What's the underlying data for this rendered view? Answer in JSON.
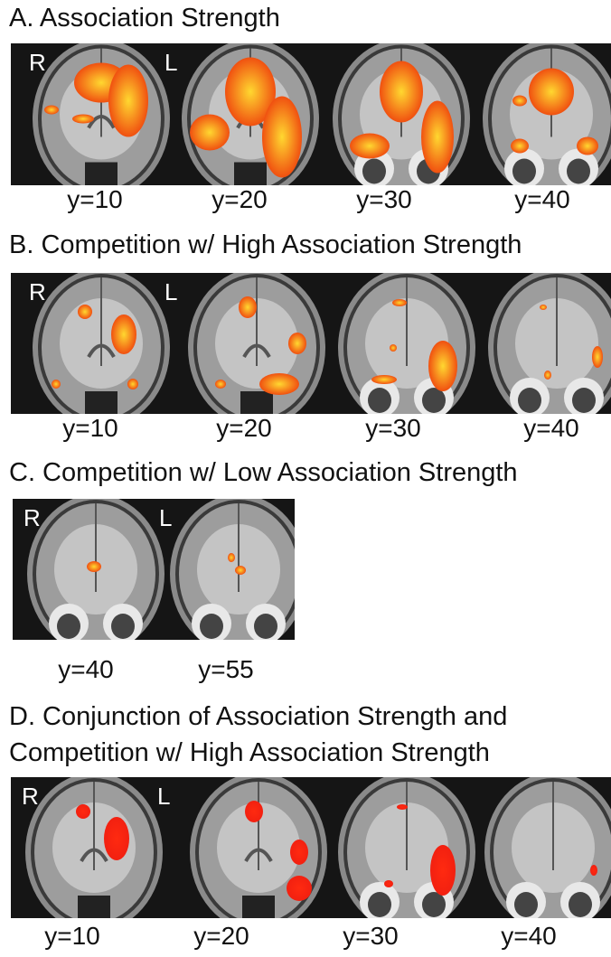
{
  "panels": [
    {
      "title_lines": [
        "A.  Association Strength"
      ],
      "side_labels": [
        "R",
        "L"
      ],
      "slices": [
        "y=10",
        "y=20",
        "y=30",
        "y=40"
      ]
    },
    {
      "title_lines": [
        "B. Competition w/ High Association Strength"
      ],
      "side_labels": [
        "R",
        "L"
      ],
      "slices": [
        "y=10",
        "y=20",
        "y=30",
        "y=40"
      ]
    },
    {
      "title_lines": [
        "C. Competition w/ Low Association Strength"
      ],
      "side_labels": [
        "R",
        "L"
      ],
      "slices": [
        "y=40",
        "y=55"
      ]
    },
    {
      "title_lines": [
        "D. Conjunction of Association Strength and",
        "Competition w/ High Association Strength"
      ],
      "side_labels": [
        "R",
        "L"
      ],
      "slices": [
        "y=10",
        "y=20",
        "y=30",
        "y=40"
      ]
    }
  ]
}
